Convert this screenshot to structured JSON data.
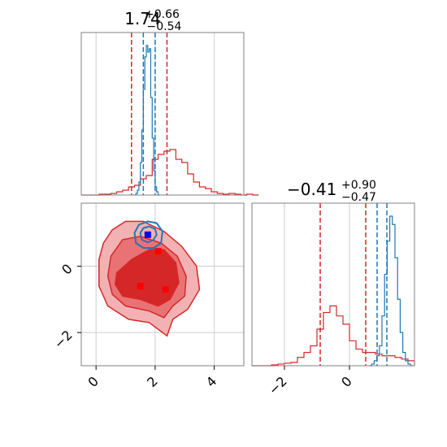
{
  "colors": {
    "red": "#d62728",
    "blue": "#1f77b4",
    "red_fill_light": "#f2b2b3",
    "red_fill_mid": "#e97374",
    "red_fill_dark": "#d62728",
    "blue_marker": "#0000ff",
    "red_marker": "#ff0000",
    "grid": "#cccccc",
    "frame": "#808080"
  },
  "chart_data": [
    {
      "type": "histogram",
      "panel": "marginal-param1",
      "title": {
        "value": "1.74",
        "upper": "+0.66",
        "lower": "−0.54"
      },
      "xlim": [
        -0.5,
        5
      ],
      "grid_x": [
        0,
        2,
        4
      ],
      "quantile_lines": {
        "red": [
          1.2,
          2.4
        ],
        "blue": [
          1.6,
          2.0
        ]
      },
      "series": [
        {
          "color": "red",
          "bins_x0": -0.5,
          "bin_width": 0.2,
          "values": [
            0,
            0,
            0,
            0.005,
            0.005,
            0.01,
            0.02,
            0.03,
            0.05,
            0.06,
            0.1,
            0.12,
            0.22,
            0.25,
            0.27,
            0.28,
            0.22,
            0.2,
            0.13,
            0.08,
            0.05,
            0.04,
            0.02,
            0.01,
            0.005,
            0.01,
            0.005,
            0.0,
            0.005,
            0.0
          ]
        },
        {
          "color": "blue",
          "bins_x0": 1.3,
          "bin_width": 0.05,
          "values": [
            0,
            0.01,
            0.03,
            0.08,
            0.2,
            0.4,
            0.65,
            0.85,
            0.92,
            0.88,
            0.9,
            0.6,
            0.35,
            0.15,
            0.05,
            0.02,
            0
          ]
        }
      ]
    },
    {
      "type": "histogram",
      "panel": "marginal-param2",
      "title": {
        "value": "−0.41",
        "upper": "+0.90",
        "lower": "−0.47"
      },
      "xlim": [
        -3,
        2
      ],
      "x_ticks": [
        -2,
        0
      ],
      "grid_x": [
        -2,
        0
      ],
      "quantile_lines": {
        "red": [
          -0.9,
          0.5
        ],
        "blue": [
          0.85,
          1.15
        ]
      },
      "series": [
        {
          "color": "red",
          "bins_x0": -3,
          "bin_width": 0.2,
          "values": [
            0,
            0,
            0,
            0.005,
            0.01,
            0.015,
            0.02,
            0.05,
            0.08,
            0.12,
            0.22,
            0.32,
            0.36,
            0.3,
            0.25,
            0.15,
            0.1,
            0.08,
            0.08,
            0.07,
            0.06,
            0.06,
            0.05,
            0.04,
            0.03
          ]
        },
        {
          "color": "blue",
          "bins_x0": 0.6,
          "bin_width": 0.08,
          "values": [
            0,
            0.01,
            0.03,
            0.06,
            0.12,
            0.3,
            0.55,
            0.75,
            0.9,
            0.85,
            0.65,
            0.4,
            0.2,
            0.08,
            0.03,
            0.01,
            0
          ]
        }
      ]
    },
    {
      "type": "contour",
      "panel": "joint-param1-param2",
      "xlim": [
        -0.5,
        5
      ],
      "ylim": [
        -3,
        1.9
      ],
      "x_ticks": [
        0,
        2,
        4
      ],
      "y_ticks": [
        -2,
        0
      ],
      "grid_x": [
        0,
        2,
        4
      ],
      "grid_y": [
        -2,
        0
      ],
      "red_contours": [
        {
          "level": "outer",
          "points": [
            [
              0.25,
              0.7
            ],
            [
              0.55,
              1.1
            ],
            [
              1.0,
              1.35
            ],
            [
              1.6,
              1.35
            ],
            [
              2.3,
              1.05
            ],
            [
              2.9,
              0.6
            ],
            [
              3.4,
              0.0
            ],
            [
              3.5,
              -0.7
            ],
            [
              3.1,
              -1.3
            ],
            [
              2.6,
              -1.6
            ],
            [
              2.4,
              -2.1
            ],
            [
              1.8,
              -1.7
            ],
            [
              1.1,
              -1.6
            ],
            [
              0.4,
              -1.2
            ],
            [
              0.1,
              -0.6
            ],
            [
              0.1,
              0.2
            ]
          ]
        },
        {
          "level": "middle",
          "points": [
            [
              0.5,
              0.3
            ],
            [
              0.9,
              0.8
            ],
            [
              1.5,
              0.9
            ],
            [
              2.2,
              0.7
            ],
            [
              2.75,
              0.3
            ],
            [
              3.05,
              -0.3
            ],
            [
              3.0,
              -0.9
            ],
            [
              2.6,
              -1.2
            ],
            [
              2.3,
              -1.55
            ],
            [
              1.8,
              -1.35
            ],
            [
              1.0,
              -1.2
            ],
            [
              0.55,
              -0.85
            ],
            [
              0.4,
              -0.3
            ]
          ]
        },
        {
          "level": "inner",
          "points": [
            [
              0.7,
              -0.2
            ],
            [
              1.2,
              0.2
            ],
            [
              1.8,
              0.5
            ],
            [
              2.3,
              0.5
            ],
            [
              2.7,
              0.1
            ],
            [
              2.8,
              -0.5
            ],
            [
              2.5,
              -1.0
            ],
            [
              2.1,
              -1.2
            ],
            [
              1.5,
              -1.0
            ],
            [
              0.9,
              -0.9
            ],
            [
              0.65,
              -0.55
            ]
          ]
        }
      ],
      "blue_contours": [
        {
          "level": "outer",
          "points": [
            [
              1.3,
              1.0
            ],
            [
              1.45,
              1.25
            ],
            [
              1.75,
              1.35
            ],
            [
              2.05,
              1.3
            ],
            [
              2.25,
              1.05
            ],
            [
              2.2,
              0.7
            ],
            [
              1.95,
              0.55
            ],
            [
              1.6,
              0.55
            ],
            [
              1.35,
              0.7
            ]
          ]
        },
        {
          "level": "inner",
          "points": [
            [
              1.5,
              1.0
            ],
            [
              1.6,
              1.15
            ],
            [
              1.8,
              1.2
            ],
            [
              2.0,
              1.12
            ],
            [
              2.05,
              0.95
            ],
            [
              1.95,
              0.8
            ],
            [
              1.75,
              0.72
            ],
            [
              1.55,
              0.8
            ]
          ]
        }
      ],
      "blue_markers": [
        [
          1.75,
          0.95
        ]
      ],
      "red_markers": [
        [
          2.1,
          0.45
        ],
        [
          1.5,
          -0.6
        ],
        [
          2.35,
          -0.7
        ]
      ]
    }
  ]
}
